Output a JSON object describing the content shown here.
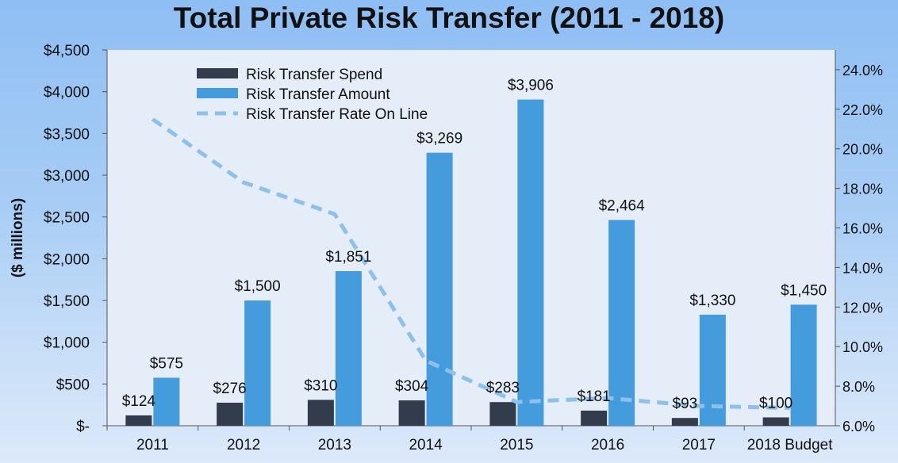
{
  "chart_data": {
    "type": "bar",
    "title": "Total Private Risk Transfer (2011 - 2018)",
    "ylabel": "($ millions)",
    "xlabel": "",
    "categories": [
      "2011",
      "2012",
      "2013",
      "2014",
      "2015",
      "2016",
      "2017",
      "2018 Budget"
    ],
    "ylim": [
      0,
      4500
    ],
    "y_ticks": [
      0,
      500,
      1000,
      1500,
      2000,
      2500,
      3000,
      3500,
      4000,
      4500
    ],
    "y_tick_labels": [
      "$-",
      "$500",
      "$1,000",
      "$1,500",
      "$2,000",
      "$2,500",
      "$3,000",
      "$3,500",
      "$4,000",
      "$4,500"
    ],
    "y2lim": [
      6.0,
      25.0
    ],
    "y2_ticks": [
      6,
      8,
      10,
      12,
      14,
      16,
      18,
      20,
      22,
      24
    ],
    "y2_tick_labels": [
      "6.0%",
      "8.0%",
      "10.0%",
      "12.0%",
      "14.0%",
      "16.0%",
      "18.0%",
      "20.0%",
      "22.0%",
      "24.0%"
    ],
    "legend_position": "top-left",
    "grid": false,
    "series": [
      {
        "name": "Risk Transfer Spend",
        "kind": "bar",
        "axis": "left",
        "color": "#323c4c",
        "values": [
          124,
          276,
          310,
          304,
          283,
          181,
          93,
          100
        ],
        "data_labels": [
          "$124",
          "$276",
          "$310",
          "$304",
          "$283",
          "$181",
          "$93",
          "$100"
        ]
      },
      {
        "name": "Risk Transfer Amount",
        "kind": "bar",
        "axis": "left",
        "color": "#449cdc",
        "values": [
          575,
          1500,
          1851,
          3269,
          3906,
          2464,
          1330,
          1450
        ],
        "data_labels": [
          "$575",
          "$1,500",
          "$1,851",
          "$3,269",
          "$3,906",
          "$2,464",
          "$1,330",
          "$1,450"
        ]
      },
      {
        "name": "Risk Transfer Rate On Line",
        "kind": "line",
        "style": "dashed",
        "axis": "right",
        "color": "#8ec0ec",
        "values": [
          21.5,
          18.3,
          16.7,
          9.3,
          7.2,
          7.4,
          7.0,
          6.9
        ]
      }
    ]
  }
}
